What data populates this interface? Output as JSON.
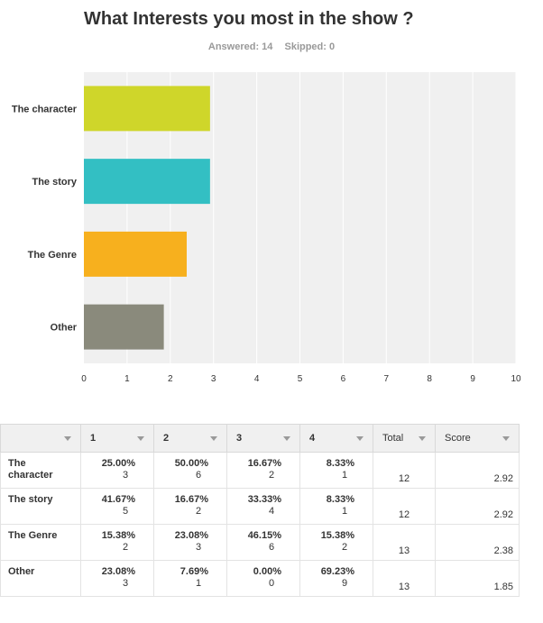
{
  "question": {
    "title": "What Interests you most in the show ?",
    "answered": "Answered: 14",
    "skipped": "Skipped: 0"
  },
  "colors": {
    "bars": [
      "#cfd62a",
      "#33bfc3",
      "#f7b01e",
      "#8a8a7c"
    ],
    "plot_bg": "#f0f0f0",
    "grid": "#ffffff"
  },
  "chart_data": {
    "type": "bar",
    "orientation": "horizontal",
    "title": "What Interests you most in the show ?",
    "categories": [
      "The character",
      "The story",
      "The Genre",
      "Other"
    ],
    "values": [
      2.92,
      2.92,
      2.38,
      1.85
    ],
    "xlim": [
      0,
      10
    ],
    "xticks": [
      "0",
      "1",
      "2",
      "3",
      "4",
      "5",
      "6",
      "7",
      "8",
      "9",
      "10"
    ],
    "grid": true
  },
  "table": {
    "headers": [
      "",
      "1",
      "2",
      "3",
      "4",
      "Total",
      "Score"
    ],
    "rows": [
      {
        "label": "The character",
        "cells": [
          [
            "25.00%",
            "3"
          ],
          [
            "50.00%",
            "6"
          ],
          [
            "16.67%",
            "2"
          ],
          [
            "8.33%",
            "1"
          ]
        ],
        "total": "12",
        "score": "2.92"
      },
      {
        "label": "The story",
        "cells": [
          [
            "41.67%",
            "5"
          ],
          [
            "16.67%",
            "2"
          ],
          [
            "33.33%",
            "4"
          ],
          [
            "8.33%",
            "1"
          ]
        ],
        "total": "12",
        "score": "2.92"
      },
      {
        "label": "The Genre",
        "cells": [
          [
            "15.38%",
            "2"
          ],
          [
            "23.08%",
            "3"
          ],
          [
            "46.15%",
            "6"
          ],
          [
            "15.38%",
            "2"
          ]
        ],
        "total": "13",
        "score": "2.38"
      },
      {
        "label": "Other",
        "cells": [
          [
            "23.08%",
            "3"
          ],
          [
            "7.69%",
            "1"
          ],
          [
            "0.00%",
            "0"
          ],
          [
            "69.23%",
            "9"
          ]
        ],
        "total": "13",
        "score": "1.85"
      }
    ]
  }
}
